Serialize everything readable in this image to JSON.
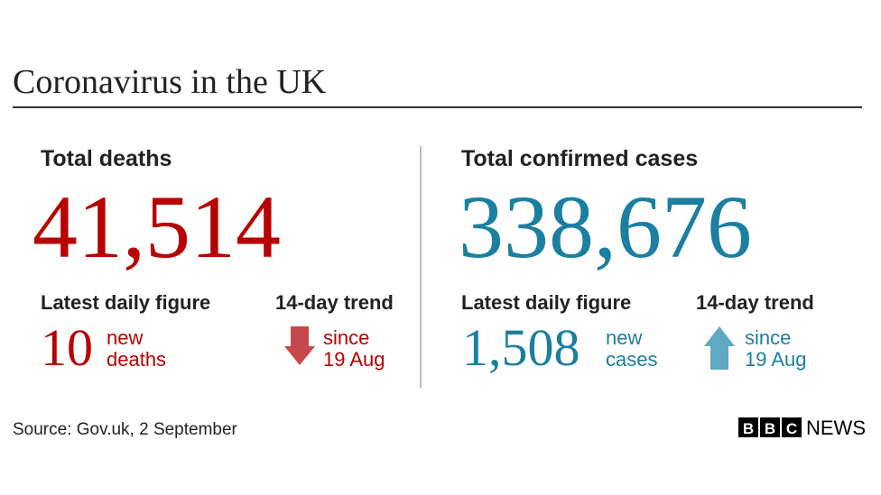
{
  "header": {
    "title": "Coronavirus in the UK"
  },
  "panels": [
    {
      "heading": "Total deaths",
      "total": "41,514",
      "daily": {
        "label": "Latest daily figure",
        "value": "10",
        "unit": [
          "new",
          "deaths"
        ]
      },
      "trend": {
        "label": "14-day trend",
        "text": [
          "since",
          "19 Aug"
        ]
      }
    },
    {
      "heading": "Total confirmed cases",
      "total": "338,676",
      "daily": {
        "label": "Latest daily figure",
        "value": "1,508",
        "unit": [
          "new",
          "cases"
        ]
      },
      "trend": {
        "label": "14-day trend",
        "text": [
          "since",
          "19 Aug"
        ]
      }
    }
  ],
  "footer": {
    "source": "Source: Gov.uk, 2 September",
    "logo": [
      "B",
      "B",
      "C"
    ],
    "brand": "NEWS"
  }
}
